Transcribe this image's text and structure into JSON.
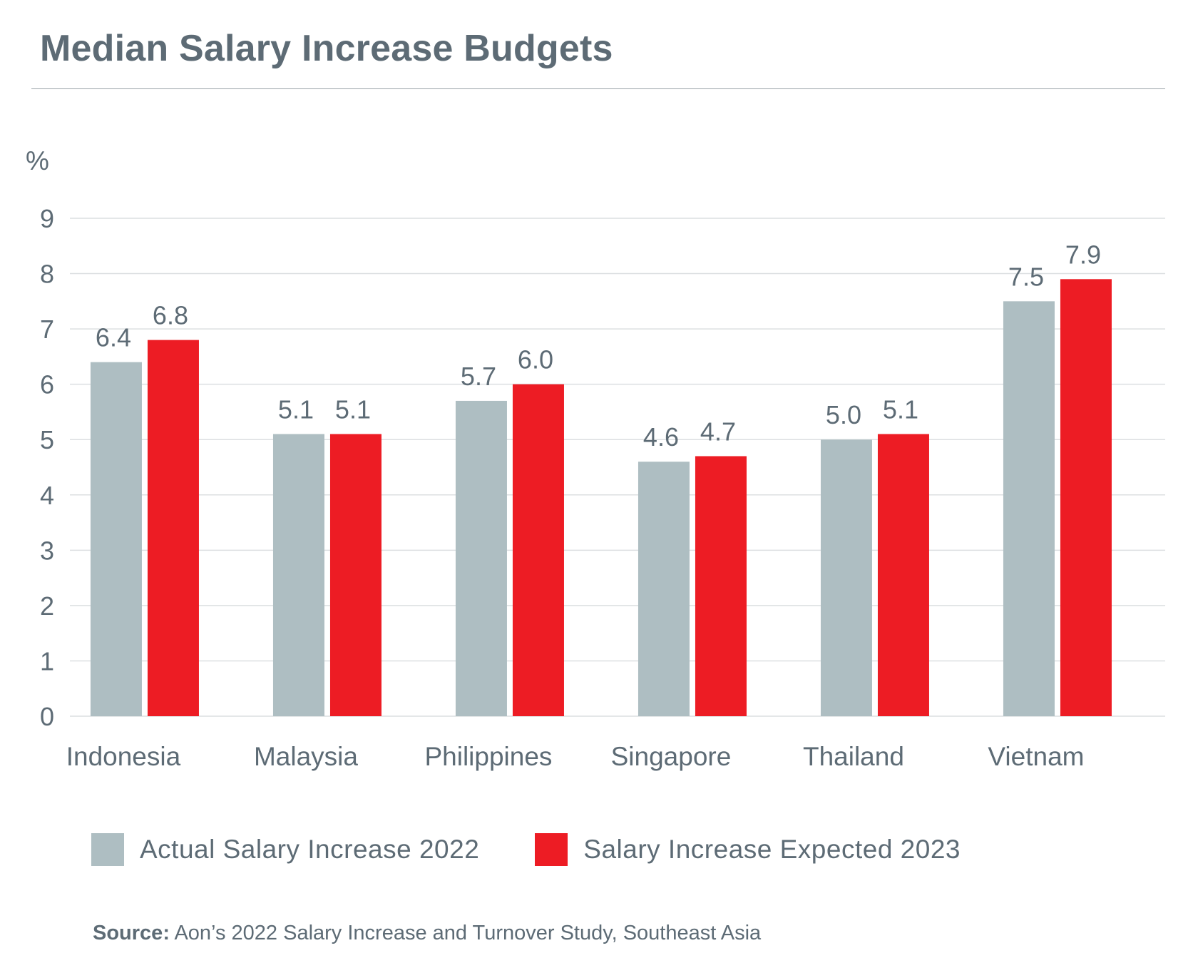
{
  "title": "Median Salary Increase Budgets",
  "source": {
    "label": "Source:",
    "text": "Aon’s 2022 Salary Increase and Turnover Study, Southeast Asia"
  },
  "colors": {
    "actual": "#aebec2",
    "expected": "#ed1c24",
    "grid": "#dcdfe1",
    "text": "#5d6b75"
  },
  "chart_data": {
    "type": "bar",
    "title": "Median Salary Increase Budgets",
    "ylabel": "%",
    "xlabel": "",
    "ylim": [
      0,
      9
    ],
    "yticks": [
      0,
      1,
      2,
      3,
      4,
      5,
      6,
      7,
      8,
      9
    ],
    "grid": true,
    "legend_position": "bottom",
    "categories": [
      "Indonesia",
      "Malaysia",
      "Philippines",
      "Singapore",
      "Thailand",
      "Vietnam"
    ],
    "series": [
      {
        "name": "Actual Salary Increase 2022",
        "color": "#aebec2",
        "values": [
          6.4,
          5.1,
          5.7,
          4.6,
          5.0,
          7.5
        ],
        "labels": [
          "6.4",
          "5.1",
          "5.7",
          "4.6",
          "5.0",
          "7.5"
        ]
      },
      {
        "name": "Salary Increase Expected 2023",
        "color": "#ed1c24",
        "values": [
          6.8,
          5.1,
          6.0,
          4.7,
          5.1,
          7.9
        ],
        "labels": [
          "6.8",
          "5.1",
          "6.0",
          "4.7",
          "5.1",
          "7.9"
        ]
      }
    ]
  }
}
